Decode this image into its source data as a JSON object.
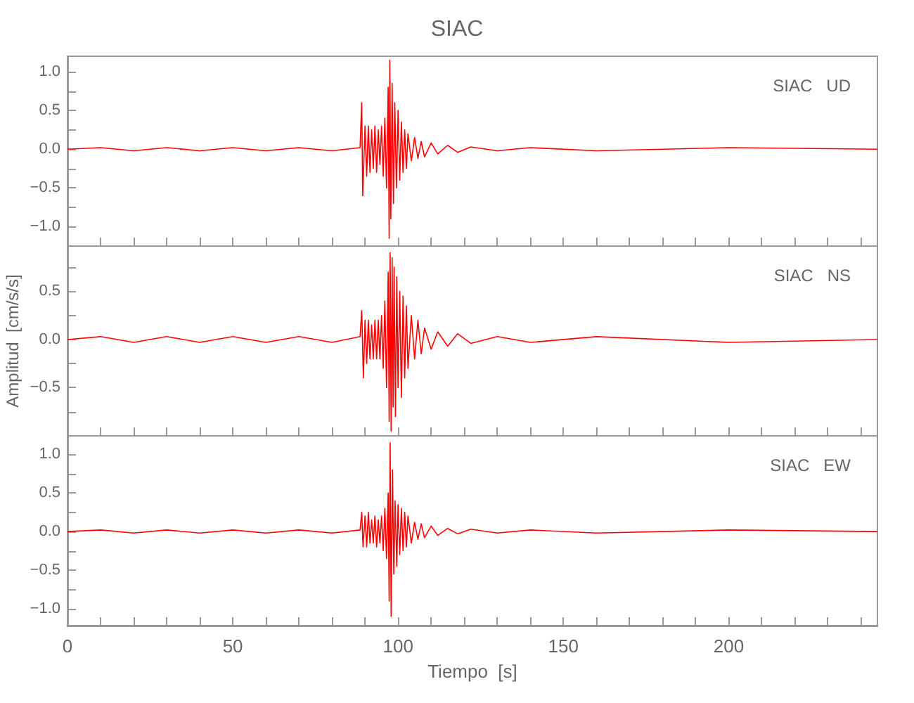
{
  "chart_data": [
    {
      "type": "line",
      "title": "SIAC",
      "annotations": [
        "SIAC   UD"
      ],
      "tick_labels": "y",
      "xlim": [
        0,
        245
      ],
      "xticks": [
        0,
        {
          "value": 10,
          "label": null
        },
        {
          "value": 20,
          "label": null
        },
        {
          "value": 30,
          "label": null
        },
        {
          "value": 40,
          "label": null
        },
        50,
        {
          "value": 60,
          "label": null
        },
        {
          "value": 70,
          "label": null
        },
        {
          "value": 80,
          "label": null
        },
        {
          "value": 90,
          "label": null
        },
        100,
        {
          "value": 110,
          "label": null
        },
        {
          "value": 120,
          "label": null
        },
        {
          "value": 130,
          "label": null
        },
        {
          "value": 140,
          "label": null
        },
        150,
        {
          "value": 160,
          "label": null
        },
        {
          "value": 170,
          "label": null
        },
        {
          "value": 180,
          "label": null
        },
        {
          "value": 190,
          "label": null
        },
        200,
        {
          "value": 210,
          "label": null
        },
        {
          "value": 220,
          "label": null
        },
        {
          "value": 230,
          "label": null
        },
        {
          "value": 240,
          "label": null
        }
      ],
      "ylim": [
        -1.25,
        1.2
      ],
      "yticks": [
        {
          "value": -1.0,
          "label": "−1.0"
        },
        {
          "value": -0.75,
          "label": null
        },
        {
          "value": -0.5,
          "label": "−0.5"
        },
        {
          "value": -0.25,
          "label": null
        },
        {
          "value": 0,
          "label": "0.0"
        },
        {
          "value": 0.25,
          "label": null
        },
        {
          "value": 0.5,
          "label": "0.5"
        },
        {
          "value": 0.75,
          "label": null
        },
        {
          "value": 1.0,
          "label": "1.0"
        }
      ],
      "series": [
        {
          "color": "#ff0000",
          "x": [
            0,
            10,
            20,
            30,
            40,
            50,
            60,
            70,
            80,
            88.5,
            89,
            89.3,
            90,
            90.5,
            91,
            91.5,
            92,
            92.5,
            93,
            93.5,
            94,
            94.5,
            95,
            95.5,
            96,
            96.5,
            97,
            97.3,
            97.5,
            97.8,
            98.2,
            98.6,
            99,
            99.5,
            100,
            100.5,
            101,
            101.5,
            102,
            102.5,
            103,
            104,
            105,
            106,
            107,
            108,
            110,
            112,
            115,
            118,
            122,
            130,
            140,
            160,
            200,
            245
          ],
          "values": [
            0.0,
            0.02,
            -0.02,
            0.02,
            -0.02,
            0.02,
            -0.02,
            0.02,
            -0.02,
            0.02,
            0.6,
            -0.6,
            0.3,
            -0.35,
            0.3,
            -0.3,
            0.25,
            -0.25,
            0.3,
            -0.3,
            0.25,
            -0.2,
            0.3,
            -0.35,
            0.4,
            -0.5,
            0.8,
            -1.15,
            1.15,
            -0.9,
            0.85,
            -0.7,
            0.6,
            -0.5,
            0.5,
            -0.4,
            0.35,
            -0.3,
            0.25,
            -0.25,
            0.2,
            -0.15,
            0.15,
            -0.12,
            0.1,
            -0.1,
            0.08,
            -0.06,
            0.05,
            -0.04,
            0.03,
            -0.02,
            0.02,
            -0.02,
            0.02,
            0.0
          ]
        }
      ]
    },
    {
      "type": "line",
      "ylabel": "Amplitud  [cm/s/s]",
      "annotations": [
        "SIAC   NS"
      ],
      "tick_labels": "y",
      "xlim": [
        0,
        245
      ],
      "xticks": [
        0,
        {
          "value": 10,
          "label": null
        },
        {
          "value": 20,
          "label": null
        },
        {
          "value": 30,
          "label": null
        },
        {
          "value": 40,
          "label": null
        },
        50,
        {
          "value": 60,
          "label": null
        },
        {
          "value": 70,
          "label": null
        },
        {
          "value": 80,
          "label": null
        },
        {
          "value": 90,
          "label": null
        },
        100,
        {
          "value": 110,
          "label": null
        },
        {
          "value": 120,
          "label": null
        },
        {
          "value": 130,
          "label": null
        },
        {
          "value": 140,
          "label": null
        },
        150,
        {
          "value": 160,
          "label": null
        },
        {
          "value": 170,
          "label": null
        },
        {
          "value": 180,
          "label": null
        },
        {
          "value": 190,
          "label": null
        },
        200,
        {
          "value": 210,
          "label": null
        },
        {
          "value": 220,
          "label": null
        },
        {
          "value": 230,
          "label": null
        },
        {
          "value": 240,
          "label": null
        }
      ],
      "ylim": [
        -1.0,
        0.97
      ],
      "yticks": [
        {
          "value": -0.75,
          "label": null
        },
        {
          "value": -0.5,
          "label": "−0.5"
        },
        {
          "value": -0.25,
          "label": null
        },
        {
          "value": 0,
          "label": "0.0"
        },
        {
          "value": 0.25,
          "label": null
        },
        {
          "value": 0.5,
          "label": "0.5"
        },
        {
          "value": 0.75,
          "label": null
        }
      ],
      "series": [
        {
          "color": "#ff0000",
          "x": [
            0,
            10,
            20,
            30,
            40,
            50,
            60,
            70,
            80,
            88.5,
            89,
            89.5,
            90,
            90.5,
            91,
            91.5,
            92,
            92.5,
            93,
            93.5,
            94,
            94.5,
            95,
            95.5,
            96,
            96.5,
            97,
            97.3,
            97.6,
            97.9,
            98.2,
            98.5,
            98.8,
            99.2,
            99.6,
            100,
            100.5,
            101,
            101.5,
            102,
            102.5,
            103,
            104,
            105,
            106,
            107,
            108,
            110,
            112,
            115,
            118,
            122,
            130,
            140,
            160,
            200,
            245
          ],
          "values": [
            0.0,
            0.03,
            -0.03,
            0.03,
            -0.03,
            0.03,
            -0.03,
            0.03,
            -0.03,
            0.03,
            0.3,
            -0.4,
            0.2,
            -0.25,
            0.2,
            -0.2,
            0.15,
            -0.2,
            0.2,
            -0.2,
            0.2,
            -0.2,
            0.25,
            -0.3,
            0.4,
            -0.5,
            0.7,
            -0.85,
            0.9,
            -0.95,
            0.85,
            -0.7,
            0.75,
            -0.8,
            0.65,
            -0.5,
            0.5,
            -0.6,
            0.45,
            -0.4,
            0.35,
            -0.3,
            0.25,
            -0.2,
            0.2,
            -0.15,
            0.12,
            -0.1,
            0.08,
            -0.07,
            0.06,
            -0.04,
            0.03,
            -0.03,
            0.03,
            -0.03,
            0.0
          ]
        }
      ]
    },
    {
      "type": "line",
      "xlabel": "Tiempo  [s]",
      "annotations": [
        "SIAC   EW"
      ],
      "xlim": [
        0,
        245
      ],
      "xticks": [
        0,
        {
          "value": 10,
          "label": null
        },
        {
          "value": 20,
          "label": null
        },
        {
          "value": 30,
          "label": null
        },
        {
          "value": 40,
          "label": null
        },
        50,
        {
          "value": 60,
          "label": null
        },
        {
          "value": 70,
          "label": null
        },
        {
          "value": 80,
          "label": null
        },
        {
          "value": 90,
          "label": null
        },
        100,
        {
          "value": 110,
          "label": null
        },
        {
          "value": 120,
          "label": null
        },
        {
          "value": 130,
          "label": null
        },
        {
          "value": 140,
          "label": null
        },
        150,
        {
          "value": 160,
          "label": null
        },
        {
          "value": 170,
          "label": null
        },
        {
          "value": 180,
          "label": null
        },
        {
          "value": 190,
          "label": null
        },
        200,
        {
          "value": 210,
          "label": null
        },
        {
          "value": 220,
          "label": null
        },
        {
          "value": 230,
          "label": null
        },
        {
          "value": 240,
          "label": null
        }
      ],
      "ylim": [
        -1.22,
        1.24
      ],
      "yticks": [
        {
          "value": -1.0,
          "label": "−1.0"
        },
        {
          "value": -0.75,
          "label": null
        },
        {
          "value": -0.5,
          "label": "−0.5"
        },
        {
          "value": -0.25,
          "label": null
        },
        {
          "value": 0,
          "label": "0.0"
        },
        {
          "value": 0.25,
          "label": null
        },
        {
          "value": 0.5,
          "label": "0.5"
        },
        {
          "value": 0.75,
          "label": null
        },
        {
          "value": 1.0,
          "label": "1.0"
        }
      ],
      "series": [
        {
          "color": "#ff0000",
          "x": [
            0,
            10,
            20,
            30,
            40,
            50,
            60,
            70,
            80,
            88.5,
            89,
            89.4,
            90,
            90.5,
            91,
            91.5,
            92,
            92.5,
            93,
            93.5,
            94,
            94.5,
            95,
            95.5,
            96,
            96.5,
            97,
            97.3,
            97.6,
            97.9,
            98.3,
            98.7,
            99.1,
            99.6,
            100,
            100.5,
            101,
            101.5,
            102,
            102.5,
            103,
            104,
            105,
            106,
            107,
            108,
            110,
            112,
            115,
            118,
            122,
            130,
            140,
            160,
            200,
            245
          ],
          "values": [
            0.0,
            0.02,
            -0.02,
            0.02,
            -0.02,
            0.02,
            -0.02,
            0.02,
            -0.02,
            0.02,
            0.25,
            -0.2,
            0.2,
            -0.2,
            0.25,
            -0.15,
            0.15,
            -0.15,
            0.2,
            -0.2,
            0.15,
            -0.15,
            0.2,
            -0.25,
            0.3,
            -0.35,
            0.5,
            -0.9,
            1.15,
            -1.1,
            0.8,
            -0.55,
            0.4,
            -0.45,
            0.35,
            -0.3,
            0.3,
            -0.25,
            0.25,
            -0.2,
            0.2,
            -0.15,
            0.12,
            -0.1,
            0.1,
            -0.08,
            0.07,
            -0.05,
            0.04,
            -0.03,
            0.03,
            -0.02,
            0.02,
            -0.02,
            0.02,
            0.0
          ]
        }
      ]
    }
  ]
}
